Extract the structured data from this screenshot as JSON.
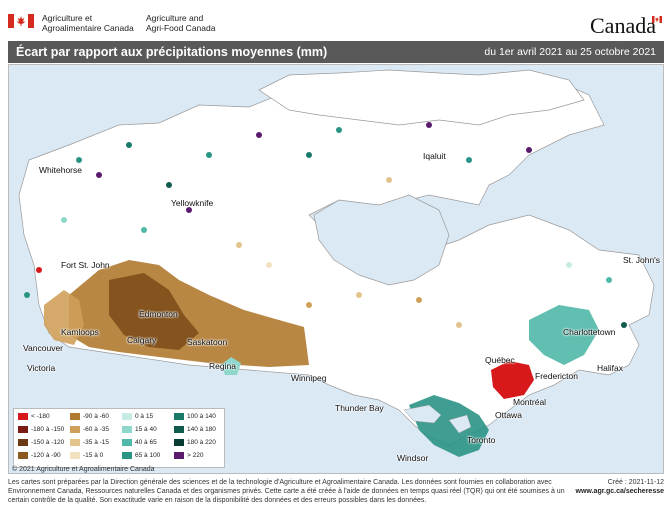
{
  "header": {
    "org_fr_line1": "Agriculture et",
    "org_fr_line2": "Agroalimentaire Canada",
    "org_en_line1": "Agriculture and",
    "org_en_line2": "Agri-Food Canada",
    "wordmark": "Canada"
  },
  "title": "Écart par rapport aux précipitations moyennes (mm)",
  "period": "du 1er avril 2021 au 25 octobre 2021",
  "cities": {
    "whitehorse": "Whitehorse",
    "yellowknife": "Yellowknife",
    "iqaluit": "Iqaluit",
    "fort_st_john": "Fort St. John",
    "edmonton": "Edmonton",
    "kamloops": "Kamloops",
    "calgary": "Calgary",
    "saskatoon": "Saskatoon",
    "vancouver": "Vancouver",
    "victoria": "Victoria",
    "regina": "Regina",
    "winnipeg": "Winnipeg",
    "thunder_bay": "Thunder Bay",
    "quebec": "Québec",
    "fredericton": "Fredericton",
    "charlottetown": "Charlottetown",
    "halifax": "Halifax",
    "st_johns": "St. John's",
    "montreal": "Montréal",
    "ottawa": "Ottawa",
    "toronto": "Toronto",
    "windsor": "Windsor"
  },
  "legend": [
    {
      "label": "< -180",
      "color": "#d7191c"
    },
    {
      "label": "-180 à -150",
      "color": "#7a1a12"
    },
    {
      "label": "-150 à -120",
      "color": "#6b3a12"
    },
    {
      "label": "-120 à -90",
      "color": "#8c5a1e"
    },
    {
      "label": "-90 à -60",
      "color": "#b07a30"
    },
    {
      "label": "-60 à -35",
      "color": "#cfa05a"
    },
    {
      "label": "-35 à -15",
      "color": "#e3c48d"
    },
    {
      "label": "-15 à 0",
      "color": "#f3e2bf"
    },
    {
      "label": "0 à 15",
      "color": "#c7ece6"
    },
    {
      "label": "15 à 40",
      "color": "#8fd6cb"
    },
    {
      "label": "40 à 65",
      "color": "#4fb8a8"
    },
    {
      "label": "65 à 100",
      "color": "#2a9485"
    },
    {
      "label": "100 à 140",
      "color": "#1a7a6a"
    },
    {
      "label": "140 à 180",
      "color": "#105a4e"
    },
    {
      "label": "180 à 220",
      "color": "#083b32"
    },
    {
      "label": "> 220",
      "color": "#5a1a6e"
    }
  ],
  "copyright": "© 2021 Agriculture et Agroalimentaire Canada",
  "footer": "Les cartes sont préparées par la Direction générale des sciences et de la technologie d'Agriculture et Agroalimentaire Canada. Les données sont fournies en collaboration avec Environnement Canada, Ressources naturelles Canada et des organismes privés. Cette carte a été créée à l'aide de données en temps quasi réel (TQR) qui ont été soumises à un certain contrôle de la qualité. Son exactitude varie en raison de la disponibilité des données et des erreurs possibles dans les données.",
  "created": "Créé : 2021-11-12",
  "url": "www.agr.gc.ca/secheresse",
  "colors": {
    "titlebar": "#595959",
    "water": "#dbe9f5",
    "land": "#ffffff",
    "deficit": "#b07a30",
    "surplus": "#2a9485",
    "extreme_deficit": "#d7191c",
    "flag_red": "#d52b1e"
  }
}
